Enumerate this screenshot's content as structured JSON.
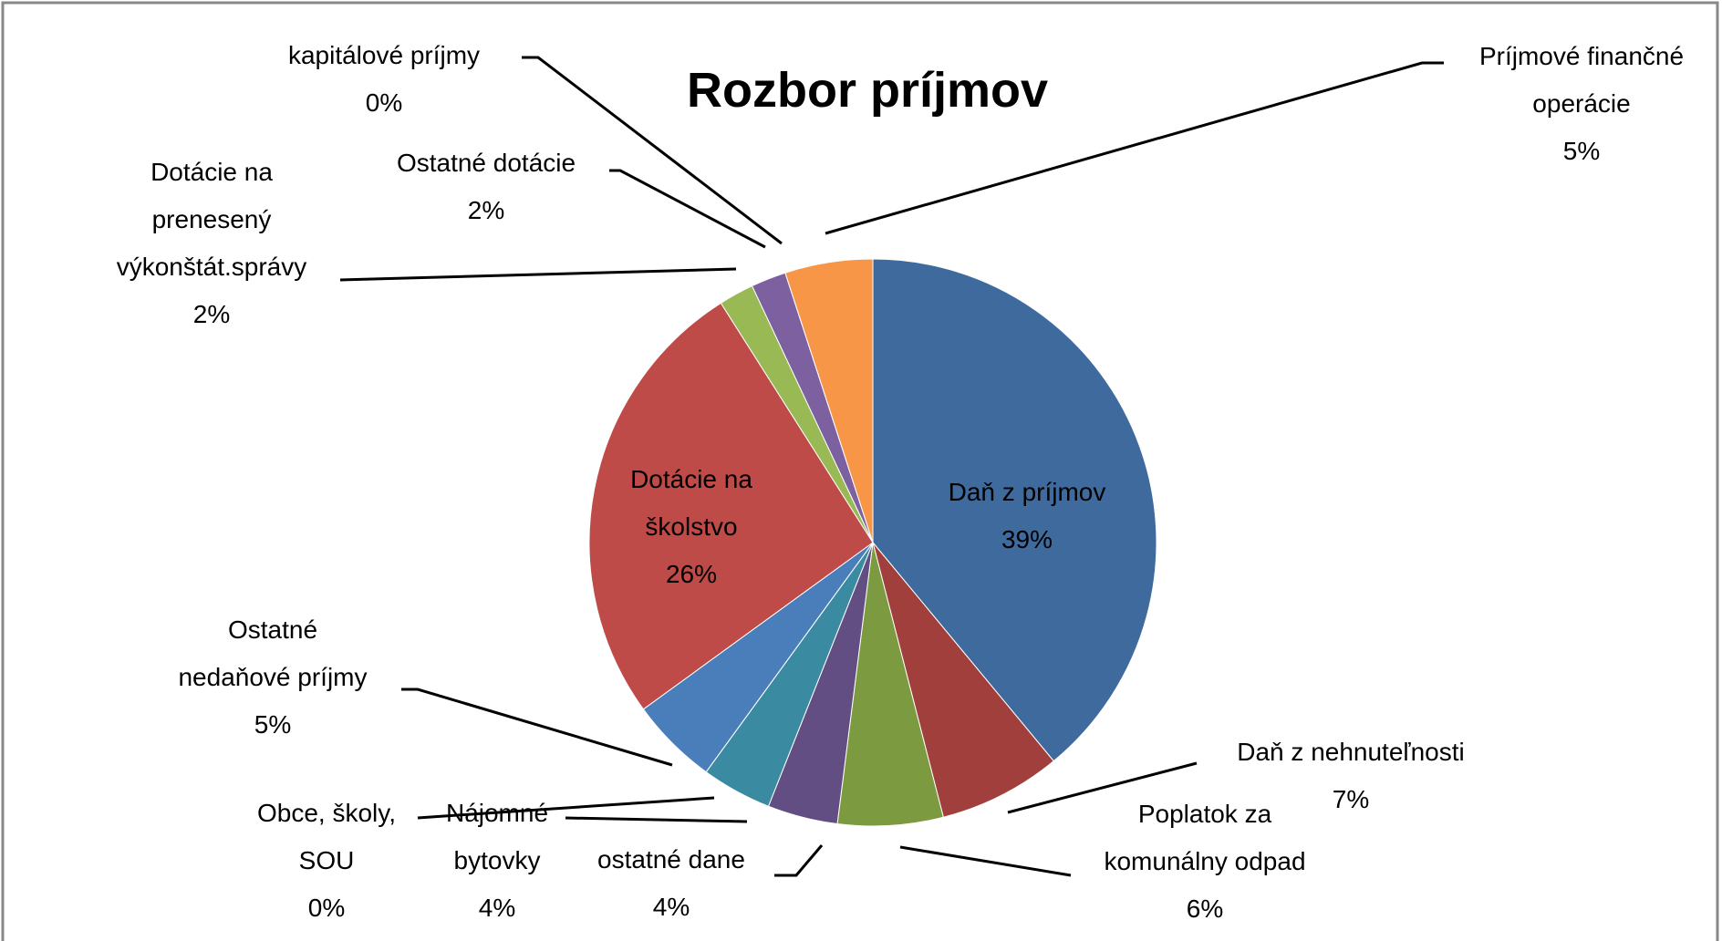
{
  "chart_data": {
    "type": "pie",
    "title": "Rozbor príjmov",
    "categories": [
      "Daň z príjmov",
      "Daň z nehnuteľnosti",
      "Poplatok za komunálny odpad",
      "ostatné dane",
      "Nájomné bytovky",
      "Obce, školy, SOU",
      "Ostatné nedaňové príjmy",
      "Dotácie na školstvo",
      "Dotácie na prenesený výkonštát.správy",
      "Ostatné dotácie",
      "kapitálové príjmy",
      "Príjmové finančné operácie"
    ],
    "values": [
      39,
      7,
      6,
      4,
      4,
      0,
      5,
      26,
      2,
      2,
      0,
      5
    ],
    "value_labels": [
      "39%",
      "7%",
      "6%",
      "4%",
      "4%",
      "0%",
      "5%",
      "26%",
      "2%",
      "2%",
      "0%",
      "5%"
    ],
    "colors": [
      "#3f6a9d",
      "#a03f3c",
      "#7c9a40",
      "#634e83",
      "#3a8aa2",
      "#d9822b",
      "#4a7ebb",
      "#be4b48",
      "#98b954",
      "#7d60a0",
      "#46aac5",
      "#f79646"
    ]
  }
}
